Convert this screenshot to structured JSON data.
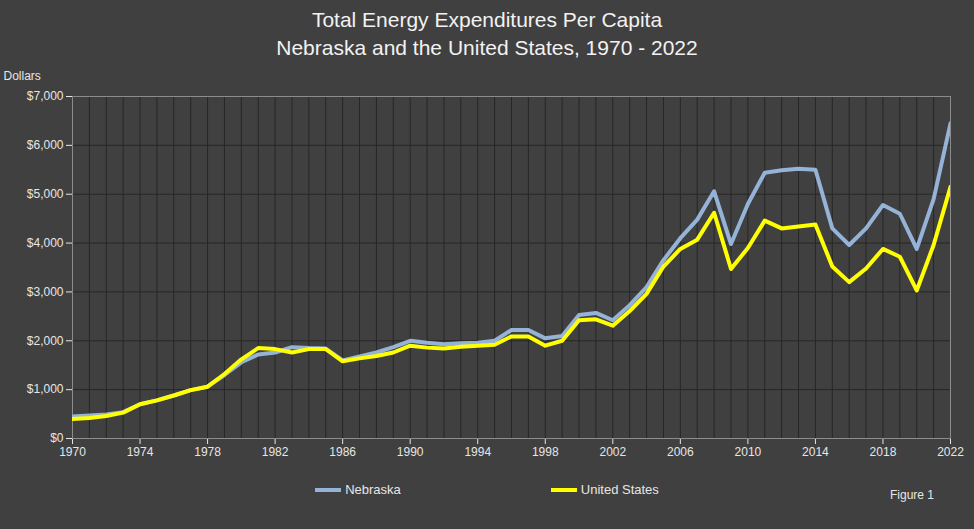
{
  "chart_data": {
    "type": "line",
    "title": "Total Energy Expenditures Per Capita",
    "subtitle": "Nebraska and the United States, 1970 - 2022",
    "y_label": "Dollars",
    "annotation": "Figure 1",
    "x": [
      1970,
      1971,
      1972,
      1973,
      1974,
      1975,
      1976,
      1977,
      1978,
      1979,
      1980,
      1981,
      1982,
      1983,
      1984,
      1985,
      1986,
      1987,
      1988,
      1989,
      1990,
      1991,
      1992,
      1993,
      1994,
      1995,
      1996,
      1997,
      1998,
      1999,
      2000,
      2001,
      2002,
      2003,
      2004,
      2005,
      2006,
      2007,
      2008,
      2009,
      2010,
      2011,
      2012,
      2013,
      2014,
      2015,
      2016,
      2017,
      2018,
      2019,
      2020,
      2021,
      2022
    ],
    "series": [
      {
        "name": "Nebraska",
        "color": "#95b3d7",
        "values": [
          450,
          470,
          490,
          540,
          700,
          780,
          880,
          990,
          1060,
          1300,
          1560,
          1720,
          1760,
          1870,
          1850,
          1840,
          1600,
          1680,
          1760,
          1870,
          2000,
          1960,
          1930,
          1950,
          1960,
          2000,
          2220,
          2220,
          2050,
          2100,
          2530,
          2570,
          2420,
          2730,
          3100,
          3650,
          4100,
          4480,
          5060,
          3980,
          4800,
          5440,
          5490,
          5520,
          5500,
          4300,
          3960,
          4300,
          4780,
          4600,
          3880,
          4900,
          6450
        ]
      },
      {
        "name": "United States",
        "color": "#ffff00",
        "values": [
          400,
          420,
          460,
          530,
          700,
          780,
          880,
          990,
          1060,
          1320,
          1620,
          1850,
          1830,
          1760,
          1830,
          1830,
          1580,
          1640,
          1690,
          1760,
          1900,
          1860,
          1840,
          1880,
          1900,
          1920,
          2090,
          2090,
          1900,
          2000,
          2420,
          2440,
          2310,
          2610,
          2960,
          3520,
          3880,
          4070,
          4620,
          3470,
          3900,
          4460,
          4300,
          4340,
          4380,
          3520,
          3200,
          3480,
          3880,
          3720,
          3030,
          3960,
          5150
        ]
      }
    ],
    "xlim": [
      1970,
      2022
    ],
    "xticks": [
      1970,
      1974,
      1978,
      1982,
      1986,
      1990,
      1994,
      1998,
      2002,
      2006,
      2010,
      2014,
      2018,
      2022
    ],
    "ylim": [
      0,
      7000
    ],
    "yticks": [
      {
        "value": 0,
        "label": "$0"
      },
      {
        "value": 1000,
        "label": "$1,000"
      },
      {
        "value": 2000,
        "label": "$2,000"
      },
      {
        "value": 3000,
        "label": "$3,000"
      },
      {
        "value": 4000,
        "label": "$4,000"
      },
      {
        "value": 5000,
        "label": "$5,000"
      },
      {
        "value": 6000,
        "label": "$6,000"
      },
      {
        "value": 7000,
        "label": "$7,000"
      }
    ],
    "grid": true,
    "legend": "bottom"
  }
}
